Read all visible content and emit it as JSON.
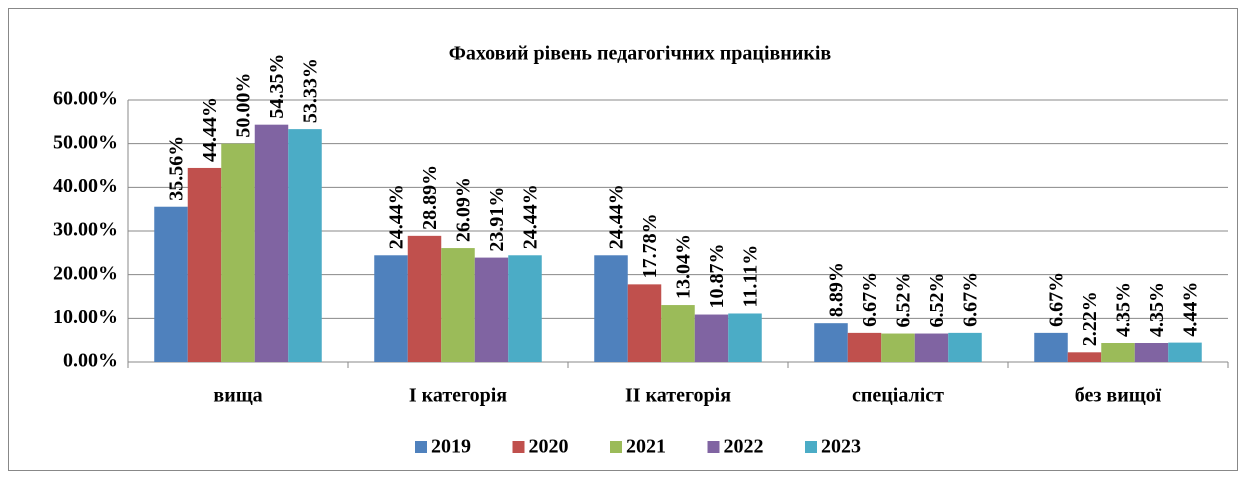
{
  "chart_data": {
    "type": "bar",
    "title": "Фаховий рівень педагогічних працівників",
    "categories": [
      "вища",
      "I категорія",
      "II категорія",
      "спеціаліст",
      "без вищої"
    ],
    "series": [
      {
        "name": "2019",
        "color": "#4f81bd",
        "values": [
          35.56,
          24.44,
          24.44,
          8.89,
          6.67
        ],
        "value_labels": [
          "35.56%",
          "24.44%",
          "24.44%",
          "8.89%",
          "6.67%"
        ]
      },
      {
        "name": "2020",
        "color": "#c0504d",
        "values": [
          44.44,
          28.89,
          17.78,
          6.67,
          2.22
        ],
        "value_labels": [
          "44.44%",
          "28.89%",
          "17.78%",
          "6.67%",
          "2.22%"
        ]
      },
      {
        "name": "2021",
        "color": "#9bbb59",
        "values": [
          50.0,
          26.09,
          13.04,
          6.52,
          4.35
        ],
        "value_labels": [
          "50.00%",
          "26.09%",
          "13.04%",
          "6.52%",
          "4.35%"
        ]
      },
      {
        "name": "2022",
        "color": "#8064a2",
        "values": [
          54.35,
          23.91,
          10.87,
          6.52,
          4.35
        ],
        "value_labels": [
          "54.35%",
          "23.91%",
          "10.87%",
          "6.52%",
          "4.35%"
        ]
      },
      {
        "name": "2023",
        "color": "#4bacc6",
        "values": [
          53.33,
          24.44,
          11.11,
          6.67,
          4.44
        ],
        "value_labels": [
          "53.33%",
          "24.44%",
          "11.11%",
          "6.67%",
          "4.44%"
        ]
      }
    ],
    "ylim": [
      0,
      60
    ],
    "yticks": [
      {
        "value": 0,
        "label": "0.00%"
      },
      {
        "value": 10,
        "label": "10.00%"
      },
      {
        "value": 20,
        "label": "20.00%"
      },
      {
        "value": 30,
        "label": "30.00%"
      },
      {
        "value": 40,
        "label": "40.00%"
      },
      {
        "value": 50,
        "label": "50.00%"
      },
      {
        "value": 60,
        "label": "60.00%"
      }
    ],
    "grid": true,
    "legend": "bottom"
  }
}
